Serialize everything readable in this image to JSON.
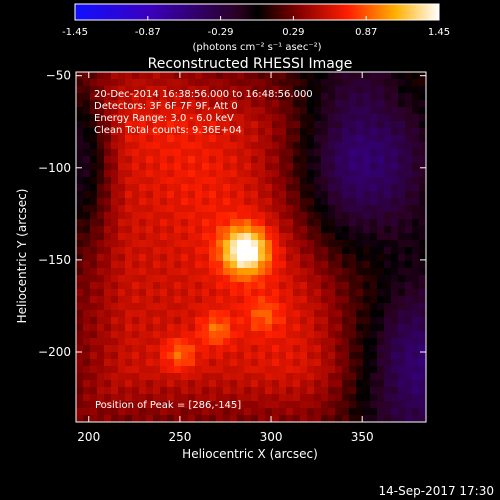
{
  "colorbar": {
    "min_label": "-1.45",
    "tick_labels": [
      "-1.45",
      "-0.87",
      "-0.29",
      "0.29",
      "0.87",
      "1.45"
    ],
    "unit_label": "(photons cm⁻² s⁻¹ asec⁻²)",
    "colors": {
      "negative_end": "#0000ff",
      "zero": "#000000",
      "positive_mid": "#ff0000",
      "positive_end": "#ffffff"
    }
  },
  "chart_data": {
    "type": "heatmap",
    "title": "Reconstructed RHESSI Image",
    "xlabel": "Heliocentric X (arcsec)",
    "ylabel": "Heliocentric Y (arcsec)",
    "xlim": [
      193,
      385
    ],
    "ylim": [
      -238,
      -48
    ],
    "xticks": [
      200,
      250,
      300,
      350
    ],
    "yticks": [
      -50,
      -100,
      -150,
      -200
    ],
    "value_range": [
      -1.45,
      1.45
    ],
    "info_lines": [
      "20-Dec-2014 16:38:56.000 to 16:48:56.000",
      "Detectors: 3F 6F 7F 9F, Att 0",
      "Energy Range: 3.0 - 6.0 keV",
      "Clean    Total counts: 9.36E+04"
    ],
    "peak_label": "Position of Peak = [286,-145]",
    "peak": [
      286,
      -145
    ],
    "sources": [
      {
        "x": 286,
        "y": -145,
        "intensity": 1.45
      },
      {
        "x": 270,
        "y": -188,
        "intensity": 0.85
      },
      {
        "x": 250,
        "y": -201,
        "intensity": 0.85
      },
      {
        "x": 296,
        "y": -180,
        "intensity": 0.75
      }
    ],
    "negative_regions": [
      {
        "x": 350,
        "y": -95,
        "intensity": -0.5
      },
      {
        "x": 375,
        "y": -210,
        "intensity": -0.3
      }
    ]
  },
  "footer": {
    "timestamp": "14-Sep-2017 17:30"
  }
}
